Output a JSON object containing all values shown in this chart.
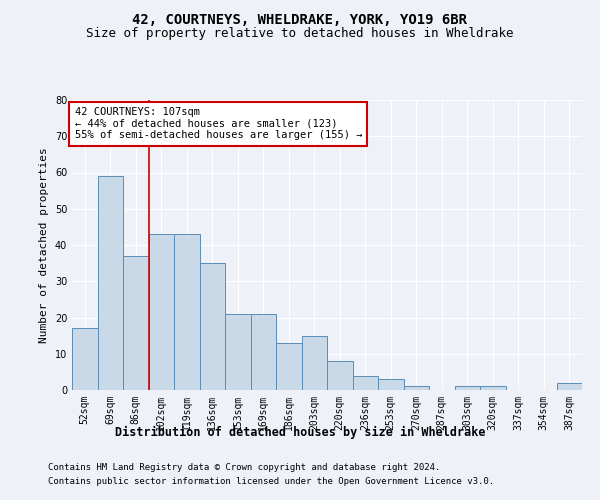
{
  "title": "42, COURTNEYS, WHELDRAKE, YORK, YO19 6BR",
  "subtitle": "Size of property relative to detached houses in Wheldrake",
  "xlabel": "Distribution of detached houses by size in Wheldrake",
  "ylabel": "Number of detached properties",
  "bar_values": [
    17,
    59,
    37,
    43,
    43,
    35,
    21,
    21,
    13,
    15,
    8,
    4,
    3,
    1,
    0,
    1,
    1,
    0,
    0,
    2
  ],
  "bar_labels": [
    "52sqm",
    "69sqm",
    "86sqm",
    "102sqm",
    "119sqm",
    "136sqm",
    "153sqm",
    "169sqm",
    "186sqm",
    "203sqm",
    "220sqm",
    "236sqm",
    "253sqm",
    "270sqm",
    "287sqm",
    "303sqm",
    "320sqm",
    "337sqm",
    "354sqm",
    "387sqm"
  ],
  "bar_color": "#c9d9e8",
  "bar_edge_color": "#5b8db8",
  "ylim": [
    0,
    80
  ],
  "yticks": [
    0,
    10,
    20,
    30,
    40,
    50,
    60,
    70,
    80
  ],
  "annotation_box_text": "42 COURTNEYS: 107sqm\n← 44% of detached houses are smaller (123)\n55% of semi-detached houses are larger (155) →",
  "red_line_x": 2.5,
  "red_line_color": "#cc0000",
  "footnote1": "Contains HM Land Registry data © Crown copyright and database right 2024.",
  "footnote2": "Contains public sector information licensed under the Open Government Licence v3.0.",
  "background_color": "#eef2f8",
  "plot_background_color": "#eef2f8",
  "title_fontsize": 10,
  "subtitle_fontsize": 9,
  "ylabel_fontsize": 8,
  "xlabel_fontsize": 8.5,
  "tick_fontsize": 7,
  "annotation_fontsize": 7.5,
  "footnote_fontsize": 6.5
}
